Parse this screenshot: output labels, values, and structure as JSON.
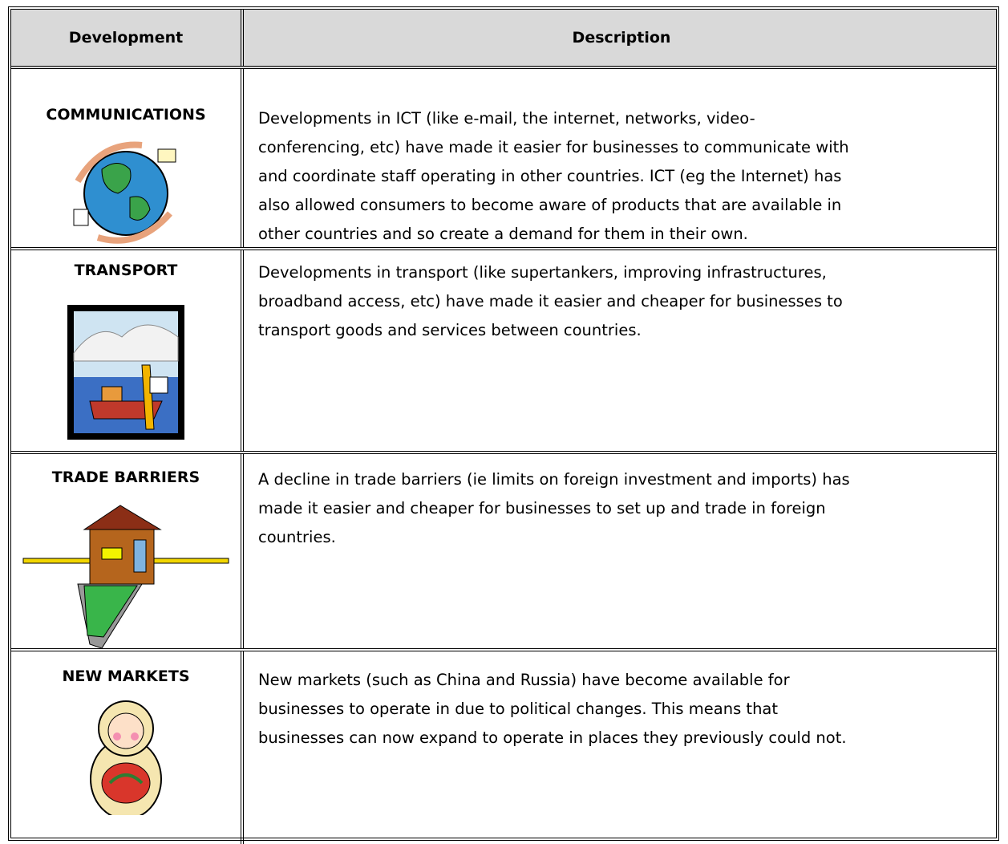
{
  "table": {
    "headers": [
      "Development",
      "Description"
    ],
    "rows": [
      {
        "development": "COMMUNICATIONS",
        "description": [
          "Developments in ICT (like e-mail, the internet, networks, video-",
          "conferencing, etc) have made it easier for businesses to communicate with",
          "and coordinate staff operating in other countries.  ICT (eg the Internet) has",
          "also allowed consumers to become aware of products that are available in",
          "other countries and so create a demand for them in their own."
        ]
      },
      {
        "development": "TRANSPORT",
        "description": [
          "Developments in transport (like supertankers, improving infrastructures,",
          "broadband access, etc) have made it easier and cheaper for businesses to",
          "transport goods and services between countries."
        ]
      },
      {
        "development": "TRADE BARRIERS",
        "description": [
          "A decline in trade barriers (ie limits on foreign investment and imports) has",
          "made it easier and cheaper for businesses to set up and trade in foreign",
          "countries."
        ]
      },
      {
        "development": "NEW MARKETS",
        "description": [
          "New markets (such as China and Russia) have become available for",
          "businesses to operate in due to political changes.  This means that",
          "businesses can now expand to operate in places they previously could not."
        ]
      }
    ]
  }
}
